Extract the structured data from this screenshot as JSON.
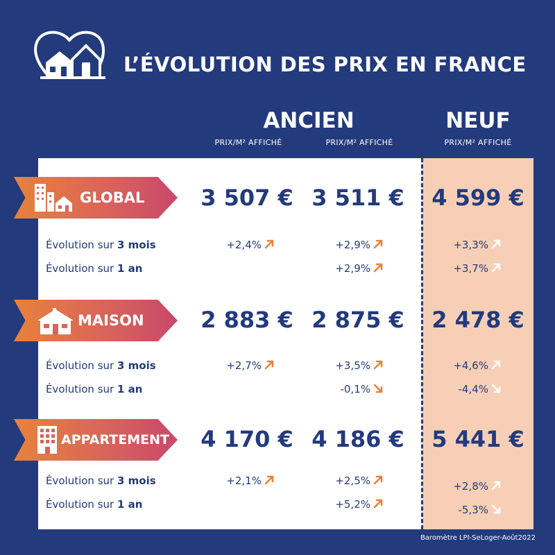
{
  "title": "L’ÉVOLUTION DES PRIX EN FRANCE",
  "columns": {
    "ancien": "ANCIEN",
    "neuf": "NEUF",
    "sub": [
      "PRIX/M² AFFICHÉ",
      "PRIX/M² AFFICHÉ",
      "PRIX/M² AFFICHÉ"
    ]
  },
  "sections": [
    {
      "label": "GLOBAL",
      "icon": "buildings-houses-icon",
      "prices": [
        "3 507 €",
        "3 511 €",
        "4 599 €"
      ],
      "evo_3m": {
        "prefix": "Évolution sur ",
        "bold": "3 mois",
        "values": [
          "+2,4%",
          "+2,9%",
          "+3,3%"
        ],
        "dirs": [
          "up",
          "up",
          "up"
        ]
      },
      "evo_1a": {
        "prefix": "Évolution sur ",
        "bold": "1 an",
        "values": [
          "",
          "+2,9%",
          "+3,7%"
        ],
        "dirs": [
          "",
          "up",
          "up"
        ]
      }
    },
    {
      "label": "MAISON",
      "icon": "house-icon",
      "prices": [
        "2 883 €",
        "2 875 €",
        "2 478 €"
      ],
      "evo_3m": {
        "prefix": "Évolution sur ",
        "bold": "3 mois",
        "values": [
          "+2,7%",
          "+3,5%",
          "+4,6%"
        ],
        "dirs": [
          "up",
          "up",
          "up"
        ]
      },
      "evo_1a": {
        "prefix": "Évolution sur ",
        "bold": "1 an",
        "values": [
          "",
          "-0,1%",
          "-4,4%"
        ],
        "dirs": [
          "",
          "down",
          "down"
        ]
      }
    },
    {
      "label": "APPARTEMENT",
      "icon": "apartment-building-icon",
      "prices": [
        "4 170 €",
        "4 186 €",
        "5 441 €"
      ],
      "evo_3m": {
        "prefix": "Évolution sur ",
        "bold": "3 mois",
        "values": [
          "+2,1%",
          "+2,5%",
          "+2,8%"
        ],
        "dirs": [
          "up",
          "up",
          "up"
        ]
      },
      "evo_1a": {
        "prefix": "Évolution sur ",
        "bold": "1 an",
        "values": [
          "",
          "+5,2%",
          "-5,3%"
        ],
        "dirs": [
          "",
          "up",
          "down"
        ]
      }
    }
  ],
  "source": "Baromètre LPI-SeLoger-Août2022",
  "colors": {
    "background": "#233a7d",
    "accent_orange": "#e8823b",
    "accent_pink": "#c9486b",
    "neuf_band": "#f6cfb6",
    "text_dark": "#233a7d"
  }
}
